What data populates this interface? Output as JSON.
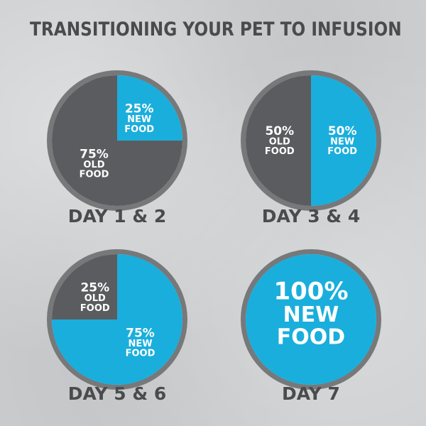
{
  "title": "TRANSITIONING YOUR PET TO INFUSION",
  "colors": {
    "old_food": "#5b5c5f",
    "new_food": "#1aaedc",
    "ring": "#77787a",
    "text_light": "#ffffff",
    "text_dark": "#4a4b4d"
  },
  "chart_data": [
    {
      "type": "pie",
      "caption": "DAY 1 & 2",
      "slices": [
        {
          "name": "NEW FOOD",
          "value": 25,
          "color_key": "new_food",
          "label": [
            "25%",
            "NEW",
            "FOOD"
          ]
        },
        {
          "name": "OLD FOOD",
          "value": 75,
          "color_key": "old_food",
          "label": [
            "75%",
            "OLD",
            "FOOD"
          ]
        }
      ]
    },
    {
      "type": "pie",
      "caption": "DAY 3 & 4",
      "slices": [
        {
          "name": "NEW FOOD",
          "value": 50,
          "color_key": "new_food",
          "label": [
            "50%",
            "NEW",
            "FOOD"
          ]
        },
        {
          "name": "OLD FOOD",
          "value": 50,
          "color_key": "old_food",
          "label": [
            "50%",
            "OLD",
            "FOOD"
          ]
        }
      ]
    },
    {
      "type": "pie",
      "caption": "DAY 5 & 6",
      "slices": [
        {
          "name": "NEW FOOD",
          "value": 75,
          "color_key": "new_food",
          "label": [
            "75%",
            "NEW",
            "FOOD"
          ]
        },
        {
          "name": "OLD FOOD",
          "value": 25,
          "color_key": "old_food",
          "label": [
            "25%",
            "OLD",
            "FOOD"
          ]
        }
      ]
    },
    {
      "type": "pie",
      "caption": "DAY 7",
      "slices": [
        {
          "name": "NEW FOOD",
          "value": 100,
          "color_key": "new_food",
          "label": [
            "100%",
            "NEW",
            "FOOD"
          ]
        }
      ]
    }
  ]
}
